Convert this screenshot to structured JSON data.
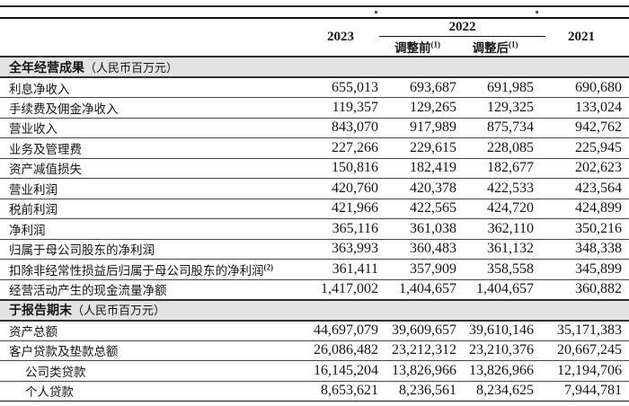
{
  "colors": {
    "band_bg": "#e3e3e3",
    "rule_dark": "#101010",
    "row_line": "#454545",
    "text": "#141414"
  },
  "table": {
    "header": {
      "col_2023": "2023",
      "group_2022": "2022",
      "sub_before": {
        "text": "调整前",
        "sup": "(1)"
      },
      "sub_after": {
        "text": "调整后",
        "sup": "(1)"
      },
      "col_2021": "2021"
    },
    "sections": [
      {
        "title": "全年经营成果",
        "unit": "（人民币百万元）",
        "rows": [
          {
            "label": "利息净收入",
            "values": [
              "655,013",
              "693,687",
              "691,985",
              "690,680"
            ]
          },
          {
            "label": "手续费及佣金净收入",
            "values": [
              "119,357",
              "129,265",
              "129,325",
              "133,024"
            ]
          },
          {
            "label": "营业收入",
            "values": [
              "843,070",
              "917,989",
              "875,734",
              "942,762"
            ]
          },
          {
            "label": "业务及管理费",
            "values": [
              "227,266",
              "229,615",
              "228,085",
              "225,945"
            ]
          },
          {
            "label": "资产减值损失",
            "values": [
              "150,816",
              "182,419",
              "182,677",
              "202,623"
            ]
          },
          {
            "label": "营业利润",
            "values": [
              "420,760",
              "420,378",
              "422,533",
              "423,564"
            ]
          },
          {
            "label": "税前利润",
            "values": [
              "421,966",
              "422,565",
              "424,720",
              "424,899"
            ]
          },
          {
            "label": "净利润",
            "values": [
              "365,116",
              "361,038",
              "362,110",
              "350,216"
            ]
          },
          {
            "label": "归属于母公司股东的净利润",
            "values": [
              "363,993",
              "360,483",
              "361,132",
              "348,338"
            ]
          },
          {
            "label": "扣除非经常性损益后归属于母公司股东的净利润",
            "sup": "(2)",
            "values": [
              "361,411",
              "357,909",
              "358,558",
              "345,899"
            ]
          },
          {
            "label": "经营活动产生的现金流量净额",
            "values": [
              "1,417,002",
              "1,404,657",
              "1,404,657",
              "360,882"
            ]
          }
        ]
      },
      {
        "title": "于报告期末",
        "unit": "（人民币百万元）",
        "rows": [
          {
            "label": "资产总额",
            "values": [
              "44,697,079",
              "39,609,657",
              "39,610,146",
              "35,171,383"
            ]
          },
          {
            "label": "客户贷款及垫款总额",
            "values": [
              "26,086,482",
              "23,212,312",
              "23,210,376",
              "20,667,245"
            ]
          },
          {
            "label": "公司类贷款",
            "indent": true,
            "values": [
              "16,145,204",
              "13,826,966",
              "13,826,966",
              "12,194,706"
            ]
          },
          {
            "label": "个人贷款",
            "indent": true,
            "values": [
              "8,653,621",
              "8,236,561",
              "8,234,625",
              "7,944,781"
            ]
          }
        ]
      }
    ]
  }
}
